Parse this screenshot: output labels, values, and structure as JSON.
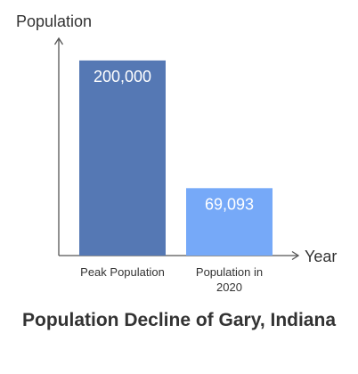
{
  "chart_data": {
    "type": "bar",
    "title": "Population Decline of Gary, Indiana",
    "xlabel": "Year",
    "ylabel": "Population",
    "categories": [
      "Peak Population",
      "Population in 2020"
    ],
    "values": [
      200000,
      69093
    ],
    "value_labels": [
      "200,000",
      "69,093"
    ],
    "ylim": [
      0,
      220000
    ],
    "grid": false,
    "colors": [
      "#5578b4",
      "#76a9f8"
    ]
  }
}
